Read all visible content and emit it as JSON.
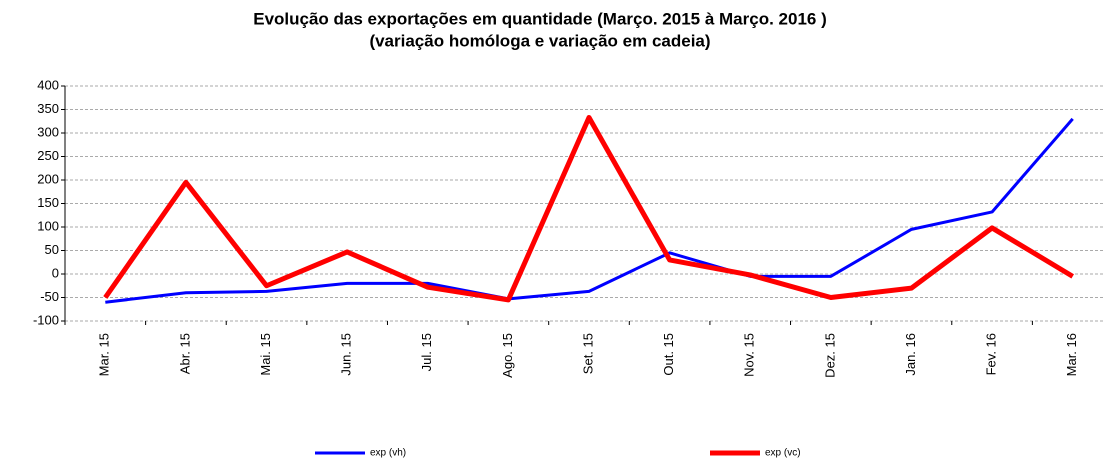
{
  "chart_data": {
    "type": "line",
    "title": "Evolução das exportações em quantidade (Março. 2015 à Março. 2016 )",
    "subtitle": "(variação homóloga e variação em cadeia)",
    "categories": [
      "Mar. 15",
      "Abr. 15",
      "Mai. 15",
      "Jun. 15",
      "Jul. 15",
      "Ago. 15",
      "Set. 15",
      "Out. 15",
      "Nov. 15",
      "Dez. 15",
      "Jan. 16",
      "Fev. 16",
      "Mar. 16"
    ],
    "series": [
      {
        "name": "exp (vh)",
        "color": "#0000ff",
        "values": [
          -60,
          -40,
          -37,
          -20,
          -20,
          -53,
          -37,
          45,
          -5,
          -5,
          95,
          132,
          330
        ]
      },
      {
        "name": "exp (vc)",
        "color": "#ff0000",
        "values": [
          -50,
          195,
          -25,
          47,
          -28,
          -55,
          333,
          30,
          -2,
          -50,
          -30,
          98,
          -5
        ]
      }
    ],
    "ylim": [
      -100,
      400
    ],
    "yticks": [
      -100,
      -50,
      0,
      50,
      100,
      150,
      200,
      250,
      300,
      350,
      400
    ],
    "grid": true
  }
}
